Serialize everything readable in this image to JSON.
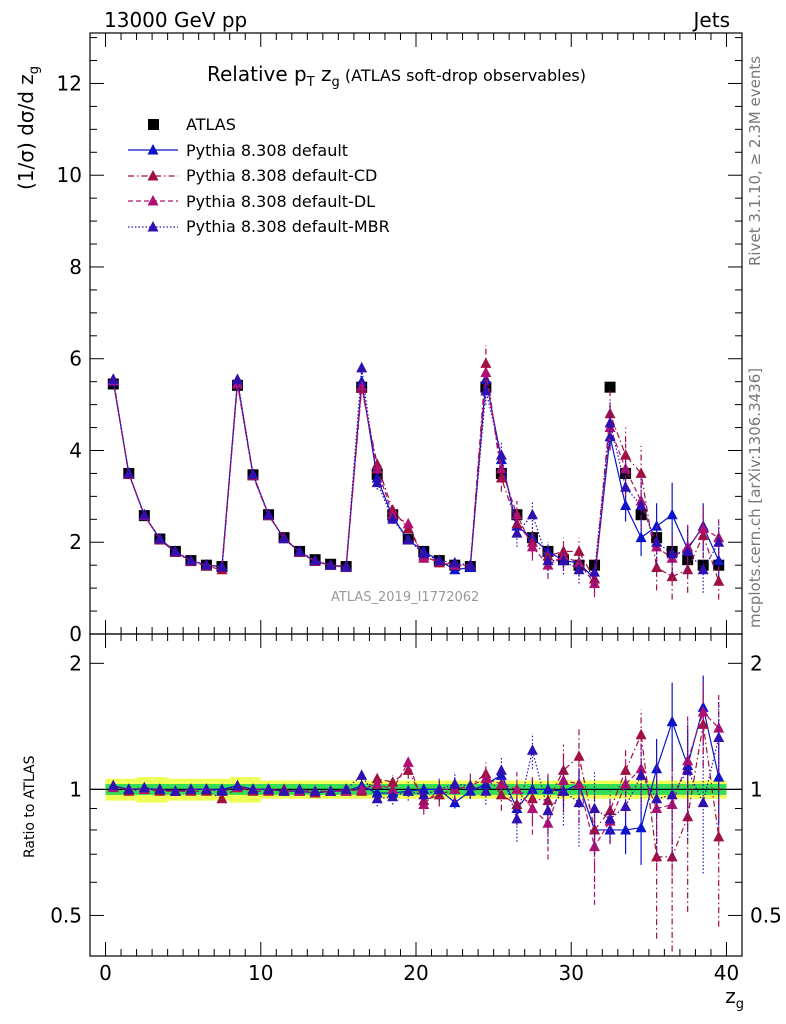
{
  "header": {
    "left": "13000 GeV pp",
    "right": "Jets"
  },
  "side": {
    "top": "Rivet 3.1.10, ≥ 2.3M events",
    "bottom": "mcplots.cern.ch [arXiv:1306.3436]"
  },
  "watermark": "ATLAS_2019_I1772062",
  "colors": {
    "atlas": "#000000",
    "default": "#0a14cc",
    "cd": "#a0103c",
    "dl": "#b01070",
    "mbr": "#3010b0",
    "band_inner": "#33dd55",
    "band_outer": "#eeff55"
  },
  "chart_data": [
    {
      "type": "scatter",
      "title_main": "Relative p",
      "title_sub_t": "T",
      "title_zg": " z",
      "title_sub_g": "g",
      "title_rest": " (ATLAS soft-drop observables)",
      "ylabel": "(1/σ) dσ/d z",
      "ylabel_sub": "g",
      "ylim": [
        0,
        13.1
      ],
      "yticks": [
        0,
        2,
        4,
        6,
        8,
        10,
        12
      ],
      "xlim": [
        -1,
        41
      ],
      "series": [
        {
          "name": "ATLAS",
          "marker": "square",
          "x": [
            0.5,
            1.5,
            2.5,
            3.5,
            4.5,
            5.5,
            6.5,
            7.5,
            8.5,
            9.5,
            10.5,
            11.5,
            12.5,
            13.5,
            14.5,
            15.5,
            16.5,
            17.5,
            18.5,
            19.5,
            20.5,
            21.5,
            22.5,
            23.5,
            24.5,
            25.5,
            26.5,
            27.5,
            28.5,
            29.5,
            30.5,
            31.5,
            32.5,
            33.5,
            34.5,
            35.5,
            36.5,
            37.5,
            38.5,
            39.5
          ],
          "y": [
            5.45,
            3.5,
            2.58,
            2.07,
            1.8,
            1.6,
            1.5,
            1.47,
            5.42,
            3.47,
            2.6,
            2.1,
            1.8,
            1.62,
            1.52,
            1.47,
            5.38,
            3.48,
            2.6,
            2.07,
            1.8,
            1.6,
            1.5,
            1.47,
            5.38,
            3.5,
            2.6,
            2.1,
            1.8,
            1.62,
            1.5,
            1.5,
            5.38,
            3.5,
            2.6,
            2.1,
            1.8,
            1.62,
            1.5,
            1.5
          ]
        },
        {
          "name": "Pythia 8.308 default",
          "marker": "triangle",
          "dash": "solid",
          "x": [
            0.5,
            1.5,
            2.5,
            3.5,
            4.5,
            5.5,
            6.5,
            7.5,
            8.5,
            9.5,
            10.5,
            11.5,
            12.5,
            13.5,
            14.5,
            15.5,
            16.5,
            17.5,
            18.5,
            19.5,
            20.5,
            21.5,
            22.5,
            23.5,
            24.5,
            25.5,
            26.5,
            27.5,
            28.5,
            29.5,
            30.5,
            31.5,
            32.5,
            33.5,
            34.5,
            35.5,
            36.5,
            37.5,
            38.5,
            39.5
          ],
          "y": [
            5.5,
            3.5,
            2.58,
            2.08,
            1.79,
            1.6,
            1.5,
            1.47,
            5.5,
            3.48,
            2.6,
            2.08,
            1.79,
            1.58,
            1.5,
            1.45,
            5.5,
            3.4,
            2.55,
            2.05,
            1.8,
            1.6,
            1.4,
            1.45,
            5.55,
            3.8,
            2.35,
            2.1,
            1.8,
            1.6,
            1.55,
            1.2,
            4.3,
            2.8,
            2.1,
            2.35,
            2.6,
            1.85,
            2.35,
            1.6
          ],
          "err": [
            0.04,
            0.03,
            0.03,
            0.02,
            0.02,
            0.02,
            0.02,
            0.02,
            0.05,
            0.04,
            0.03,
            0.03,
            0.03,
            0.02,
            0.02,
            0.02,
            0.06,
            0.05,
            0.05,
            0.05,
            0.05,
            0.05,
            0.05,
            0.05,
            0.12,
            0.15,
            0.15,
            0.15,
            0.15,
            0.15,
            0.15,
            0.15,
            0.3,
            0.35,
            0.4,
            0.5,
            0.7,
            0.5,
            0.5,
            0.4
          ]
        },
        {
          "name": "Pythia 8.308 default-CD",
          "marker": "triangle",
          "dash": "dashdot",
          "x": [
            0.5,
            1.5,
            2.5,
            3.5,
            4.5,
            5.5,
            6.5,
            7.5,
            8.5,
            9.5,
            10.5,
            11.5,
            12.5,
            13.5,
            14.5,
            15.5,
            16.5,
            17.5,
            18.5,
            19.5,
            20.5,
            21.5,
            22.5,
            23.5,
            24.5,
            25.5,
            26.5,
            27.5,
            28.5,
            29.5,
            30.5,
            31.5,
            32.5,
            33.5,
            34.5,
            35.5,
            36.5,
            37.5,
            38.5,
            39.5
          ],
          "y": [
            5.55,
            3.48,
            2.6,
            2.05,
            1.78,
            1.58,
            1.48,
            1.4,
            5.45,
            3.45,
            2.58,
            2.1,
            1.78,
            1.58,
            1.5,
            1.47,
            5.35,
            3.7,
            2.7,
            2.3,
            1.7,
            1.55,
            1.5,
            1.5,
            5.9,
            3.4,
            2.4,
            2.0,
            1.7,
            1.8,
            1.8,
            1.2,
            4.8,
            3.9,
            3.5,
            1.45,
            1.25,
            1.4,
            2.15,
            1.15
          ],
          "err": [
            0.05,
            0.04,
            0.03,
            0.03,
            0.03,
            0.03,
            0.03,
            0.03,
            0.06,
            0.05,
            0.04,
            0.04,
            0.04,
            0.03,
            0.03,
            0.03,
            0.1,
            0.1,
            0.1,
            0.1,
            0.1,
            0.1,
            0.1,
            0.1,
            0.4,
            0.3,
            0.3,
            0.3,
            0.3,
            0.3,
            0.3,
            0.3,
            0.5,
            0.6,
            0.6,
            0.5,
            0.5,
            0.5,
            0.5,
            0.4
          ]
        },
        {
          "name": "Pythia 8.308 default-DL",
          "marker": "triangle",
          "dash": "dashed",
          "x": [
            0.5,
            1.5,
            2.5,
            3.5,
            4.5,
            5.5,
            6.5,
            7.5,
            8.5,
            9.5,
            10.5,
            11.5,
            12.5,
            13.5,
            14.5,
            15.5,
            16.5,
            17.5,
            18.5,
            19.5,
            20.5,
            21.5,
            22.5,
            23.5,
            24.5,
            25.5,
            26.5,
            27.5,
            28.5,
            29.5,
            30.5,
            31.5,
            32.5,
            33.5,
            34.5,
            35.5,
            36.5,
            37.5,
            38.5,
            39.5
          ],
          "y": [
            5.52,
            3.5,
            2.58,
            2.07,
            1.79,
            1.6,
            1.5,
            1.46,
            5.45,
            3.47,
            2.6,
            2.08,
            1.79,
            1.6,
            1.5,
            1.46,
            5.4,
            3.6,
            2.6,
            2.4,
            1.65,
            1.6,
            1.5,
            1.5,
            5.7,
            3.6,
            2.6,
            1.9,
            1.5,
            1.7,
            1.55,
            1.1,
            4.5,
            3.6,
            2.9,
            1.9,
            1.65,
            1.9,
            2.3,
            2.1
          ],
          "err": [
            0.05,
            0.04,
            0.03,
            0.03,
            0.03,
            0.03,
            0.03,
            0.03,
            0.06,
            0.05,
            0.04,
            0.04,
            0.04,
            0.03,
            0.03,
            0.03,
            0.1,
            0.1,
            0.1,
            0.1,
            0.1,
            0.1,
            0.1,
            0.1,
            0.35,
            0.3,
            0.3,
            0.3,
            0.3,
            0.3,
            0.3,
            0.3,
            0.5,
            0.6,
            0.6,
            0.5,
            0.5,
            0.5,
            0.5,
            0.4
          ]
        },
        {
          "name": "Pythia 8.308 default-MBR",
          "marker": "triangle",
          "dash": "dotted",
          "x": [
            0.5,
            1.5,
            2.5,
            3.5,
            4.5,
            5.5,
            6.5,
            7.5,
            8.5,
            9.5,
            10.5,
            11.5,
            12.5,
            13.5,
            14.5,
            15.5,
            16.5,
            17.5,
            18.5,
            19.5,
            20.5,
            21.5,
            22.5,
            23.5,
            24.5,
            25.5,
            26.5,
            27.5,
            28.5,
            29.5,
            30.5,
            31.5,
            32.5,
            33.5,
            34.5,
            35.5,
            36.5,
            37.5,
            38.5,
            39.5
          ],
          "y": [
            5.55,
            3.5,
            2.6,
            2.07,
            1.8,
            1.6,
            1.5,
            1.46,
            5.55,
            3.48,
            2.6,
            2.08,
            1.8,
            1.6,
            1.5,
            1.47,
            5.8,
            3.3,
            2.5,
            2.05,
            1.75,
            1.6,
            1.55,
            1.5,
            5.3,
            3.9,
            2.2,
            2.6,
            1.6,
            1.6,
            1.4,
            1.35,
            4.6,
            3.2,
            2.8,
            2.0,
            1.75,
            1.8,
            1.4,
            2.0
          ],
          "err": [
            0.05,
            0.04,
            0.03,
            0.03,
            0.03,
            0.03,
            0.03,
            0.03,
            0.06,
            0.05,
            0.04,
            0.04,
            0.04,
            0.03,
            0.03,
            0.03,
            0.15,
            0.15,
            0.1,
            0.1,
            0.1,
            0.1,
            0.1,
            0.1,
            0.3,
            0.3,
            0.3,
            0.3,
            0.3,
            0.3,
            0.3,
            0.3,
            0.5,
            0.6,
            0.6,
            0.5,
            0.5,
            0.5,
            0.5,
            0.4
          ]
        }
      ]
    },
    {
      "type": "scatter",
      "ylabel": "Ratio to ATLAS",
      "xlabel": "z",
      "xlabel_sub": "g",
      "ylog": true,
      "ylim": [
        0.4,
        2.35
      ],
      "yticks": [
        0.5,
        1,
        2
      ],
      "xticks": [
        0,
        10,
        20,
        30,
        40
      ],
      "xlim": [
        -1,
        41
      ],
      "band_inner": [
        0.03,
        0.03,
        0.03,
        0.03,
        0.03,
        0.03,
        0.03,
        0.03,
        0.03,
        0.03,
        0.03,
        0.03,
        0.03,
        0.03,
        0.03,
        0.03,
        0.03,
        0.03,
        0.03,
        0.03,
        0.03,
        0.03,
        0.03,
        0.03,
        0.03,
        0.03,
        0.03,
        0.03,
        0.03,
        0.03,
        0.03,
        0.03,
        0.03,
        0.03,
        0.03,
        0.03,
        0.03,
        0.03,
        0.03,
        0.03
      ],
      "band_outer": [
        0.06,
        0.06,
        0.07,
        0.07,
        0.06,
        0.06,
        0.06,
        0.06,
        0.07,
        0.07,
        0.05,
        0.05,
        0.05,
        0.05,
        0.05,
        0.05,
        0.05,
        0.05,
        0.05,
        0.05,
        0.05,
        0.05,
        0.05,
        0.05,
        0.05,
        0.05,
        0.05,
        0.05,
        0.05,
        0.05,
        0.05,
        0.05,
        0.05,
        0.05,
        0.05,
        0.05,
        0.05,
        0.05,
        0.05,
        0.05
      ],
      "series": [
        {
          "name": "Pythia 8.308 default",
          "y": [
            1.02,
            1.0,
            1.0,
            1.0,
            0.99,
            1.0,
            1.0,
            1.0,
            1.02,
            1.0,
            1.0,
            0.99,
            0.99,
            0.98,
            0.99,
            0.99,
            1.02,
            0.98,
            0.98,
            0.99,
            1.0,
            1.0,
            0.93,
            0.99,
            1.03,
            1.08,
            0.9,
            1.0,
            1.0,
            0.99,
            1.03,
            0.8,
            0.8,
            0.8,
            0.81,
            1.12,
            1.45,
            1.14,
            1.57,
            1.07
          ],
          "err": [
            0.01,
            0.01,
            0.01,
            0.01,
            0.01,
            0.01,
            0.01,
            0.01,
            0.01,
            0.01,
            0.01,
            0.01,
            0.01,
            0.01,
            0.01,
            0.01,
            0.01,
            0.02,
            0.02,
            0.02,
            0.03,
            0.03,
            0.03,
            0.03,
            0.03,
            0.04,
            0.05,
            0.06,
            0.07,
            0.08,
            0.09,
            0.1,
            0.06,
            0.1,
            0.15,
            0.2,
            0.35,
            0.25,
            0.3,
            0.25
          ]
        },
        {
          "name": "Pythia 8.308 default-CD",
          "y": [
            1.02,
            0.99,
            1.0,
            0.99,
            0.99,
            0.99,
            0.99,
            0.95,
            1.01,
            0.99,
            0.99,
            1.0,
            0.99,
            0.98,
            0.99,
            1.0,
            0.99,
            1.06,
            1.04,
            1.11,
            0.94,
            0.97,
            1.0,
            1.02,
            1.09,
            0.97,
            0.92,
            0.95,
            0.94,
            1.11,
            1.2,
            0.8,
            0.89,
            1.11,
            1.35,
            0.69,
            0.69,
            0.86,
            1.43,
            0.77
          ],
          "err": [
            0.01,
            0.01,
            0.01,
            0.01,
            0.01,
            0.01,
            0.01,
            0.01,
            0.01,
            0.01,
            0.01,
            0.01,
            0.01,
            0.01,
            0.01,
            0.01,
            0.02,
            0.03,
            0.04,
            0.05,
            0.05,
            0.06,
            0.07,
            0.07,
            0.07,
            0.08,
            0.1,
            0.12,
            0.15,
            0.17,
            0.2,
            0.2,
            0.1,
            0.15,
            0.2,
            0.25,
            0.3,
            0.35,
            0.3,
            0.3
          ]
        },
        {
          "name": "Pythia 8.308 default-DL",
          "y": [
            1.01,
            1.0,
            1.0,
            1.0,
            0.99,
            1.0,
            1.0,
            0.99,
            1.01,
            1.0,
            1.0,
            0.99,
            0.99,
            0.99,
            0.99,
            0.99,
            1.0,
            1.03,
            1.0,
            1.16,
            0.92,
            1.0,
            1.0,
            1.02,
            1.06,
            1.03,
            1.0,
            0.9,
            0.83,
            1.05,
            1.03,
            0.73,
            0.84,
            1.03,
            1.12,
            0.9,
            0.92,
            1.17,
            1.53,
            1.4
          ],
          "err": [
            0.01,
            0.01,
            0.01,
            0.01,
            0.01,
            0.01,
            0.01,
            0.01,
            0.01,
            0.01,
            0.01,
            0.01,
            0.01,
            0.01,
            0.01,
            0.01,
            0.02,
            0.03,
            0.04,
            0.05,
            0.05,
            0.06,
            0.07,
            0.07,
            0.07,
            0.08,
            0.1,
            0.12,
            0.15,
            0.17,
            0.2,
            0.2,
            0.1,
            0.15,
            0.2,
            0.25,
            0.3,
            0.35,
            0.3,
            0.3
          ]
        },
        {
          "name": "Pythia 8.308 default-MBR",
          "y": [
            1.02,
            1.0,
            1.01,
            1.0,
            0.99,
            1.0,
            1.0,
            0.99,
            1.02,
            1.0,
            1.0,
            0.99,
            1.0,
            0.99,
            0.99,
            1.0,
            1.08,
            0.95,
            0.96,
            0.99,
            0.97,
            1.0,
            1.03,
            1.02,
            0.99,
            1.11,
            0.85,
            1.24,
            0.89,
            0.99,
            0.93,
            0.9,
            0.85,
            0.91,
            1.08,
            0.95,
            0.97,
            1.11,
            0.93,
            1.33
          ],
          "err": [
            0.01,
            0.01,
            0.01,
            0.01,
            0.01,
            0.01,
            0.01,
            0.01,
            0.01,
            0.01,
            0.01,
            0.01,
            0.01,
            0.01,
            0.01,
            0.01,
            0.03,
            0.04,
            0.04,
            0.05,
            0.05,
            0.06,
            0.07,
            0.07,
            0.07,
            0.08,
            0.1,
            0.12,
            0.15,
            0.17,
            0.2,
            0.2,
            0.1,
            0.15,
            0.2,
            0.25,
            0.3,
            0.35,
            0.3,
            0.3
          ]
        }
      ]
    }
  ]
}
